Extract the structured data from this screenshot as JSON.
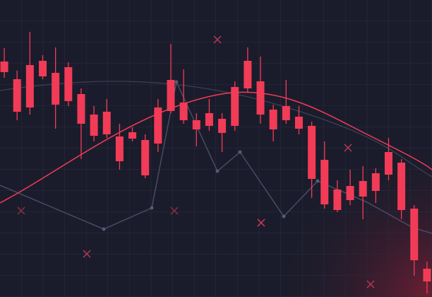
{
  "chart_data": {
    "type": "candlestick",
    "open": [
      333,
      308,
      328,
      334,
      317,
      325,
      287,
      258,
      262,
      227,
      233,
      222,
      268,
      307,
      275,
      250,
      260,
      252,
      297,
      334,
      305,
      265,
      270,
      255,
      242,
      194,
      152,
      157,
      164,
      175,
      205,
      190,
      125,
      40
    ],
    "high": [
      352,
      320,
      375,
      342,
      353,
      332,
      295,
      270,
      280,
      245,
      240,
      230,
      280,
      358,
      322,
      260,
      280,
      260,
      305,
      353,
      340,
      272,
      307,
      270,
      248,
      220,
      165,
      180,
      185,
      182,
      225,
      195,
      130,
      50
    ],
    "low": [
      310,
      250,
      258,
      308,
      238,
      270,
      195,
      220,
      225,
      180,
      220,
      168,
      205,
      260,
      245,
      213,
      235,
      205,
      235,
      290,
      245,
      220,
      245,
      230,
      140,
      125,
      120,
      130,
      110,
      133,
      165,
      110,
      30,
      5
    ],
    "close": [
      318,
      262,
      268,
      312,
      272,
      277,
      245,
      228,
      230,
      192,
      224,
      172,
      217,
      263,
      250,
      237,
      242,
      232,
      242,
      295,
      258,
      237,
      250,
      238,
      167,
      131,
      123,
      137,
      142,
      150,
      173,
      123,
      52,
      22
    ],
    "ylim": [
      0,
      420
    ],
    "color": "#f23b57",
    "grid": true
  }
}
